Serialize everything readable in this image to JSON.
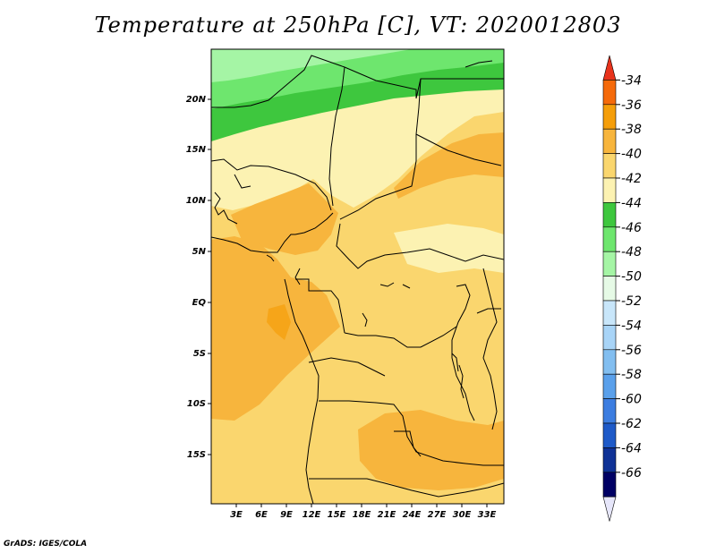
{
  "title": "Temperature at 250hPa [C], VT: 2020012803",
  "credit": "GrADS: IGES/COLA",
  "map": {
    "lat_ticks": [
      "20N",
      "15N",
      "10N",
      "5N",
      "EQ",
      "5S",
      "10S",
      "15S"
    ],
    "lon_ticks": [
      "3E",
      "6E",
      "9E",
      "12E",
      "15E",
      "18E",
      "21E",
      "24E",
      "27E",
      "30E",
      "33E"
    ]
  },
  "colorbar": {
    "labels": [
      "-34",
      "-36",
      "-38",
      "-40",
      "-42",
      "-44",
      "-46",
      "-48",
      "-50",
      "-52",
      "-54",
      "-56",
      "-58",
      "-60",
      "-62",
      "-64",
      "-66"
    ],
    "colors": [
      "#e8331c",
      "#f56a0a",
      "#f59e0a",
      "#f7b53d",
      "#fad66e",
      "#fcf2b2",
      "#3ec73e",
      "#6ee66e",
      "#a5f5a5",
      "#e6fae6",
      "#c8e6fa",
      "#a8d4f7",
      "#82bef0",
      "#5aa0eb",
      "#3c7de0",
      "#1e5ac8",
      "#0f3296",
      "#000064",
      "#e6e6fa"
    ]
  }
}
